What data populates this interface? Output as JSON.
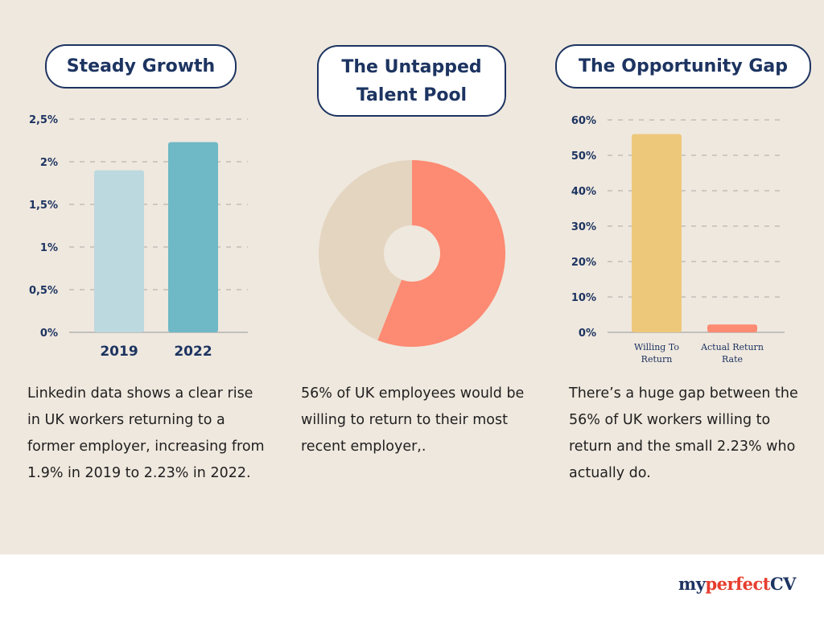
{
  "panels": [
    {
      "title_lines": [
        "Steady Growth"
      ],
      "description": "Linkedin data shows a clear rise in UK workers returning to a former employer, increasing from 1.9% in 2019 to 2.23% in 2022."
    },
    {
      "title_lines": [
        "The Untapped",
        "Talent Pool"
      ],
      "description": "56% of UK employees would be willing to return to their most recent employer,."
    },
    {
      "title_lines": [
        "The Opportunity Gap"
      ],
      "description": "There’s a huge gap between the 56% of UK workers willing to return and the small 2.23% who actually do."
    }
  ],
  "logo": {
    "part1": "my",
    "part2": "perfect",
    "part3": "CV"
  },
  "colors": {
    "navy": "#1d3461",
    "background": "#efe8de",
    "accent_red": "#e63d2e"
  },
  "chart_data": [
    {
      "type": "bar",
      "categories": [
        "2019",
        "2022"
      ],
      "values": [
        1.9,
        2.23
      ],
      "ylim": [
        0,
        2.5
      ],
      "yticks": [
        0,
        0.5,
        1,
        1.5,
        2,
        2.5
      ],
      "ytick_labels": [
        "0%",
        "0,5%",
        "1%",
        "1,5%",
        "2%",
        "2,5%"
      ],
      "colors": [
        "#bcd9df",
        "#6fb8c6"
      ],
      "grid": true
    },
    {
      "type": "pie",
      "donut": true,
      "slices": [
        {
          "value": 56,
          "color": "#fd8a72"
        },
        {
          "value": 44,
          "color": "#e4d5c0"
        }
      ]
    },
    {
      "type": "bar",
      "categories": [
        "Willing To Return",
        "Actual Return Rate"
      ],
      "values": [
        56,
        2.23
      ],
      "ylim": [
        0,
        60
      ],
      "yticks": [
        0,
        10,
        20,
        30,
        40,
        50,
        60
      ],
      "ytick_labels": [
        "0%",
        "10%",
        "20%",
        "30%",
        "40%",
        "50%",
        "60%"
      ],
      "colors": [
        "#eec87a",
        "#fd8a72"
      ],
      "grid": true
    }
  ]
}
